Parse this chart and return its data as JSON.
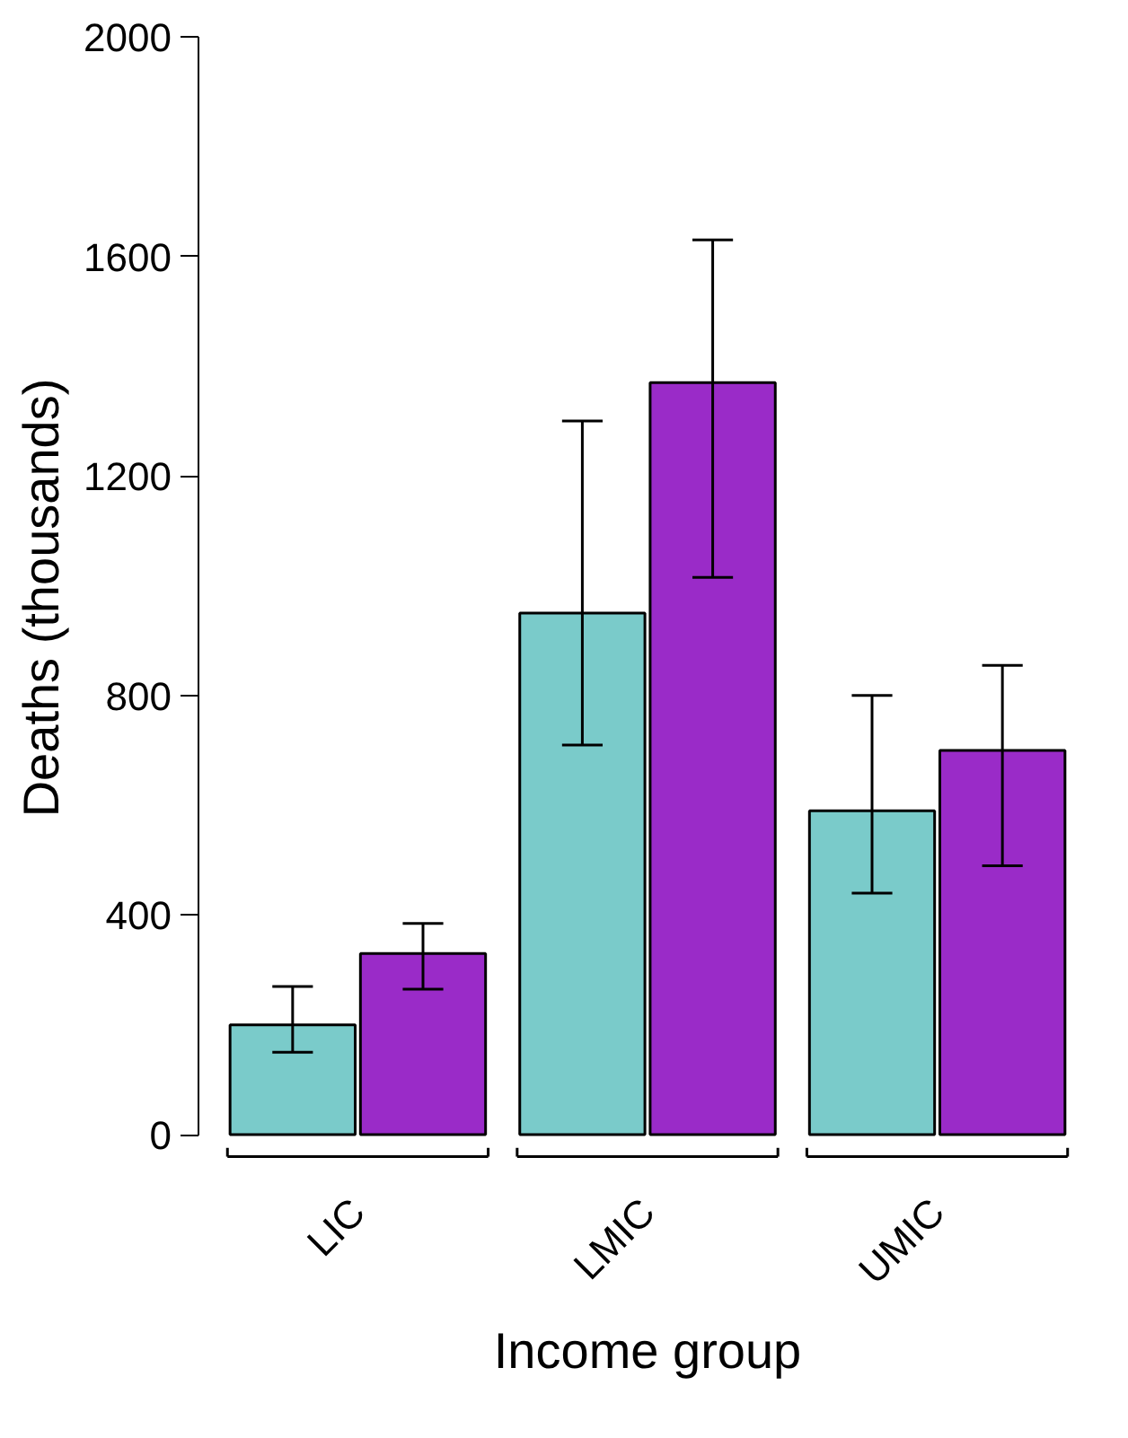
{
  "chart_data": {
    "type": "bar",
    "xlabel": "Income group",
    "ylabel": "Deaths (thousands)",
    "categories": [
      "LIC",
      "LMIC",
      "UMIC"
    ],
    "series": [
      {
        "color": "#7acbca",
        "values": [
          200,
          950,
          590
        ],
        "errors": [
          [
            150,
            270
          ],
          [
            710,
            1300
          ],
          [
            440,
            800
          ]
        ]
      },
      {
        "color": "#9a2bc8",
        "values": [
          330,
          1370,
          700
        ],
        "errors": [
          [
            265,
            385
          ],
          [
            1015,
            1630
          ],
          [
            490,
            855
          ]
        ]
      }
    ],
    "ylim": [
      0,
      2000
    ],
    "yticks": [
      0,
      400,
      800,
      1200,
      1600,
      2000
    ],
    "grid": false
  }
}
